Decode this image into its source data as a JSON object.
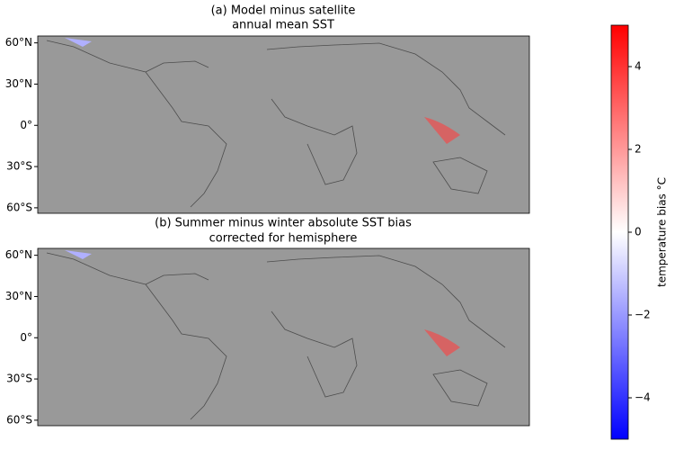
{
  "panels": [
    {
      "title": [
        "(a) Model minus satellite",
        "annual mean SST"
      ],
      "ylim": [
        -64,
        65
      ],
      "yticks": [
        {
          "value": 60,
          "label": "60°N"
        },
        {
          "value": 30,
          "label": "30°N"
        },
        {
          "value": 0,
          "label": "0°"
        },
        {
          "value": -30,
          "label": "30°S"
        },
        {
          "value": -60,
          "label": "60°S"
        }
      ]
    },
    {
      "title": [
        "(b) Summer minus winter absolute SST bias",
        "corrected for hemisphere"
      ],
      "ylim": [
        -64,
        65
      ],
      "yticks": [
        {
          "value": 60,
          "label": "60°N"
        },
        {
          "value": 30,
          "label": "30°N"
        },
        {
          "value": 0,
          "label": "0°"
        },
        {
          "value": -30,
          "label": "30°S"
        },
        {
          "value": -60,
          "label": "60°S"
        }
      ]
    }
  ],
  "colorbar": {
    "label": "temperature bias °C",
    "lim": [
      -5,
      5
    ],
    "ticks": [
      {
        "value": -4,
        "label": "−4"
      },
      {
        "value": -2,
        "label": "−2"
      },
      0,
      2,
      4
    ],
    "colormap": [
      "#0000ff",
      "#ffffff",
      "#ff0000"
    ]
  }
}
